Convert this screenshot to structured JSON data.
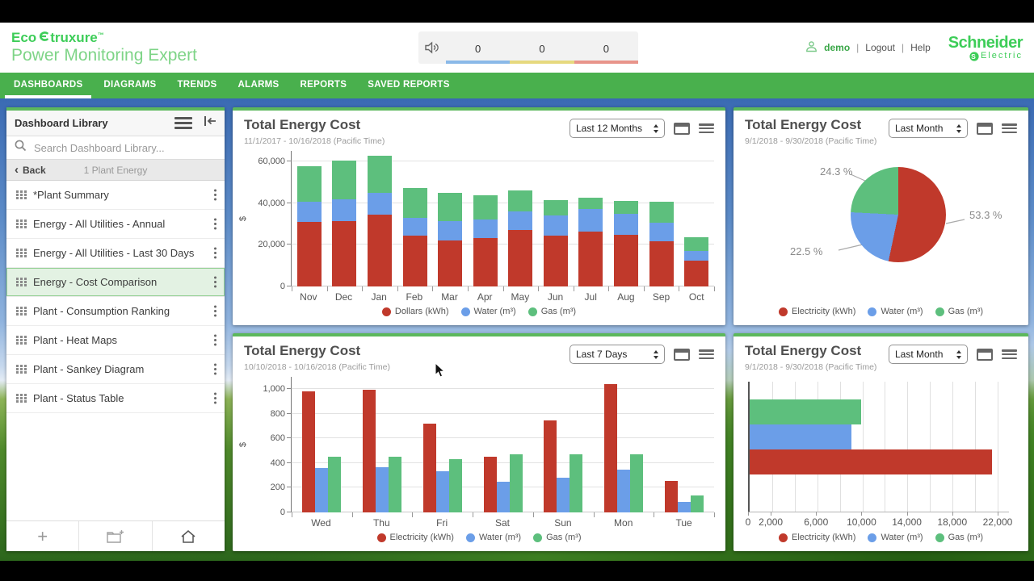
{
  "colors": {
    "brand_green": "#3dcd58",
    "nav_green": "#49b04d",
    "panel_accent_green": "#5cb85c",
    "selected_item_green": "#e3f2e3",
    "series_red": "#c0392b",
    "series_blue": "#6b9ee8",
    "series_green": "#5dbf7d",
    "alarm_strip_blue": "#8ab9e8",
    "alarm_strip_yellow": "#e6d97e",
    "alarm_strip_red": "#e8948a"
  },
  "header": {
    "eco": "Eco",
    "struxure": "truxure",
    "tm": "™",
    "product": "Power Monitoring Expert",
    "alarm_counts": [
      "0",
      "0",
      "0"
    ],
    "user": "demo",
    "logout": "Logout",
    "help": "Help",
    "brand1": "Schneider",
    "brand2": "Electric"
  },
  "nav": {
    "tabs": [
      {
        "label": "DASHBOARDS",
        "active": true
      },
      {
        "label": "DIAGRAMS",
        "active": false
      },
      {
        "label": "TRENDS",
        "active": false
      },
      {
        "label": "ALARMS",
        "active": false
      },
      {
        "label": "REPORTS",
        "active": false
      },
      {
        "label": "SAVED REPORTS",
        "active": false
      }
    ]
  },
  "sidebar": {
    "title": "Dashboard Library",
    "search_placeholder": "Search Dashboard Library...",
    "back_label": "Back",
    "back_chevron": "‹",
    "breadcrumb": "1 Plant Energy",
    "items": [
      {
        "label": "*Plant Summary",
        "selected": false
      },
      {
        "label": "Energy - All Utilities - Annual",
        "selected": false
      },
      {
        "label": "Energy - All Utilities - Last 30 Days",
        "selected": false
      },
      {
        "label": "Energy - Cost Comparison",
        "selected": true
      },
      {
        "label": "Plant - Consumption Ranking",
        "selected": false
      },
      {
        "label": "Plant - Heat Maps",
        "selected": false
      },
      {
        "label": "Plant - Sankey Diagram",
        "selected": false
      },
      {
        "label": "Plant - Status Table",
        "selected": false
      }
    ],
    "toolbar": [
      "add-dashboard",
      "add-folder",
      "home"
    ]
  },
  "chart_data": [
    {
      "type": "bar",
      "variant": "stacked",
      "title": "Total Energy Cost",
      "subtitle": "11/1/2017 - 10/16/2018 (Pacific Time)",
      "range": "Last 12 Months",
      "ylabel": "$",
      "ylim": [
        0,
        65000
      ],
      "yticks": [
        {
          "v": 0,
          "label": "0"
        },
        {
          "v": 20000,
          "label": "20,000"
        },
        {
          "v": 40000,
          "label": "40,000"
        },
        {
          "v": 60000,
          "label": "60,000"
        }
      ],
      "categories": [
        "Nov",
        "Dec",
        "Jan",
        "Feb",
        "Mar",
        "Apr",
        "May",
        "Jun",
        "Jul",
        "Aug",
        "Sep",
        "Oct"
      ],
      "series": [
        {
          "name": "Dollars (kWh)",
          "color": "#c0392b",
          "values": [
            31000,
            31200,
            34500,
            24300,
            22200,
            23300,
            27000,
            24200,
            26300,
            24700,
            21500,
            12500
          ]
        },
        {
          "name": "Water (m³)",
          "color": "#6b9ee8",
          "values": [
            9500,
            10600,
            10200,
            8700,
            9000,
            9000,
            9000,
            10000,
            10700,
            10300,
            9200,
            4700
          ]
        },
        {
          "name": "Gas (m³)",
          "color": "#5dbf7d",
          "values": [
            17000,
            18400,
            17800,
            14200,
            13800,
            11500,
            10000,
            7100,
            5500,
            6000,
            9800,
            6600
          ]
        }
      ]
    },
    {
      "type": "pie",
      "title": "Total Energy Cost",
      "subtitle": "9/1/2018 - 9/30/2018 (Pacific Time)",
      "range": "Last Month",
      "slices": [
        {
          "name": "Electricity (kWh)",
          "color": "#c0392b",
          "pct": 53.3,
          "label": "53.3 %"
        },
        {
          "name": "Water (m³)",
          "color": "#6b9ee8",
          "pct": 22.5,
          "label": "22.5 %"
        },
        {
          "name": "Gas (m³)",
          "color": "#5dbf7d",
          "pct": 24.3,
          "label": "24.3 %"
        }
      ]
    },
    {
      "type": "bar",
      "variant": "grouped",
      "title": "Total Energy Cost",
      "subtitle": "10/10/2018 - 10/16/2018 (Pacific Time)",
      "range": "Last 7 Days",
      "ylabel": "$",
      "ylim": [
        0,
        1100
      ],
      "yticks": [
        {
          "v": 0,
          "label": "0"
        },
        {
          "v": 200,
          "label": "200"
        },
        {
          "v": 400,
          "label": "400"
        },
        {
          "v": 600,
          "label": "600"
        },
        {
          "v": 800,
          "label": "800"
        },
        {
          "v": 1000,
          "label": "1,000"
        }
      ],
      "categories": [
        "Wed",
        "Thu",
        "Fri",
        "Sat",
        "Sun",
        "Mon",
        "Tue"
      ],
      "series": [
        {
          "name": "Electricity (kWh)",
          "color": "#c0392b",
          "values": [
            980,
            995,
            720,
            455,
            745,
            1040,
            255
          ]
        },
        {
          "name": "Water (m³)",
          "color": "#6b9ee8",
          "values": [
            360,
            370,
            335,
            250,
            280,
            345,
            85
          ]
        },
        {
          "name": "Gas (m³)",
          "color": "#5dbf7d",
          "values": [
            450,
            450,
            430,
            470,
            470,
            470,
            140
          ]
        }
      ]
    },
    {
      "type": "bar",
      "variant": "horizontal",
      "title": "Total Energy Cost",
      "subtitle": "9/1/2018 - 9/30/2018 (Pacific Time)",
      "range": "Last Month",
      "xlim": [
        0,
        23000
      ],
      "grid_step": 2000,
      "xticks": [
        {
          "v": 0,
          "label": "0"
        },
        {
          "v": 2000,
          "label": "2,000"
        },
        {
          "v": 6000,
          "label": "6,000"
        },
        {
          "v": 10000,
          "label": "10,000"
        },
        {
          "v": 14000,
          "label": "14,000"
        },
        {
          "v": 18000,
          "label": "18,000"
        },
        {
          "v": 22000,
          "label": "22,000"
        }
      ],
      "bars": [
        {
          "name": "Gas (m³)",
          "color": "#5dbf7d",
          "value": 9900
        },
        {
          "name": "Water (m³)",
          "color": "#6b9ee8",
          "value": 9050
        },
        {
          "name": "Electricity (kWh)",
          "color": "#c0392b",
          "value": 21500
        }
      ],
      "legend": [
        {
          "name": "Electricity (kWh)",
          "color": "#c0392b"
        },
        {
          "name": "Water (m³)",
          "color": "#6b9ee8"
        },
        {
          "name": "Gas (m³)",
          "color": "#5dbf7d"
        }
      ]
    }
  ]
}
